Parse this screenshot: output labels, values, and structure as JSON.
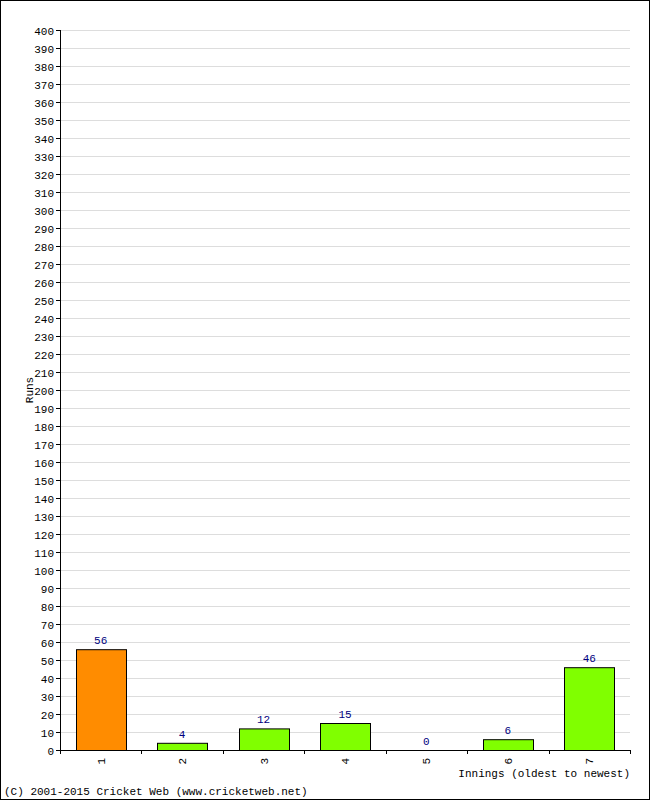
{
  "chart_data": {
    "type": "bar",
    "categories": [
      "1",
      "2",
      "3",
      "4",
      "5",
      "6",
      "7"
    ],
    "values": [
      56,
      4,
      12,
      15,
      0,
      6,
      46
    ],
    "colors": [
      "#ff8c00",
      "#80ff00",
      "#80ff00",
      "#80ff00",
      "#80ff00",
      "#80ff00",
      "#80ff00"
    ],
    "x_label": "Innings (oldest to newest)",
    "y_label": "Runs",
    "annotation": "(C) 2001-2015 Cricket Web (www.cricketweb.net)",
    "ylim": [
      0,
      400
    ],
    "yticks": [
      0,
      10,
      20,
      30,
      40,
      50,
      60,
      70,
      80,
      90,
      100,
      110,
      120,
      130,
      140,
      150,
      160,
      170,
      180,
      190,
      200,
      210,
      220,
      230,
      240,
      250,
      260,
      270,
      280,
      290,
      300,
      310,
      320,
      330,
      340,
      350,
      360,
      370,
      380,
      390,
      400
    ],
    "grid": true,
    "data_labels": true
  }
}
